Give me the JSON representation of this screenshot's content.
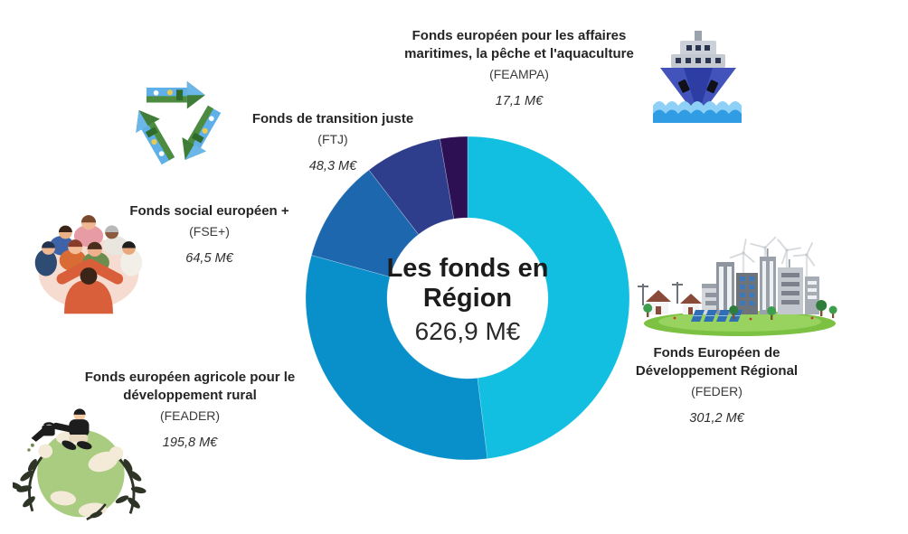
{
  "center": {
    "title_line1": "Les fonds en",
    "title_line2": "Région",
    "total": "626,9 M€"
  },
  "funds": [
    {
      "title": "Fonds européen pour les affaires maritimes, la pêche et l'aquaculture",
      "abbr": "(FEAMPA)",
      "amount": "17,1 M€",
      "icon": "ship-icon",
      "color": "#2d1053"
    },
    {
      "title": "Fonds de transition juste",
      "abbr": "(FTJ)",
      "amount": "48,3 M€",
      "icon": "recycle-collage-icon",
      "color": "#2e3e8c"
    },
    {
      "title": "Fonds social européen +",
      "abbr": "(FSE+)",
      "amount": "64,5 M€",
      "icon": "people-huddle-icon",
      "color": "#1c67ae"
    },
    {
      "title": "Fonds européen agricole pour le développement rural",
      "abbr": "(FEADER)",
      "amount": "195,8 M€",
      "icon": "globe-plant-icon",
      "color": "#0990ca"
    },
    {
      "title": "Fonds Européen de Développement Régional",
      "abbr": "(FEDER)",
      "amount": "301,2 M€",
      "icon": "eco-city-icon",
      "color": "#12bfe0"
    }
  ],
  "chart_data": {
    "type": "pie",
    "donut": true,
    "title": "Les fonds en Région",
    "total_label": "626,9 M€",
    "total_value": 626.9,
    "unit": "M€",
    "start_angle_deg": 0,
    "direction": "clockwise",
    "legend_position": "around-chart",
    "outer_radius": 179,
    "inner_radius": 89,
    "segments": [
      {
        "label": "FEDER",
        "value": 301.2,
        "color": "#12bfe0"
      },
      {
        "label": "FEADER",
        "value": 195.8,
        "color": "#0990ca"
      },
      {
        "label": "FSE+",
        "value": 64.5,
        "color": "#1c67ae"
      },
      {
        "label": "FTJ",
        "value": 48.3,
        "color": "#2e3e8c"
      },
      {
        "label": "FEAMPA",
        "value": 17.1,
        "color": "#2d1053"
      }
    ]
  }
}
